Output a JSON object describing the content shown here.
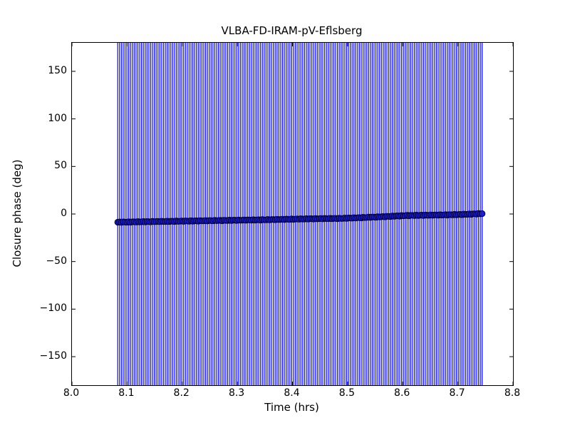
{
  "figure": {
    "kind": "matplotlib-style static plot image",
    "background_color": "#ffffff",
    "spine_color": "#000000"
  },
  "chart_data": {
    "type": "scatter",
    "title": "VLBA-FD-IRAM-pV-Eflsberg",
    "xlabel": "Time (hrs)",
    "ylabel": "Closure phase (deg)",
    "xlim": [
      8.0,
      8.8
    ],
    "ylim": [
      -180,
      180
    ],
    "grid": false,
    "legend": false,
    "xticks": {
      "values": [
        8.0,
        8.1,
        8.2,
        8.3,
        8.4,
        8.5,
        8.6,
        8.7,
        8.8
      ],
      "labels": [
        "8.0",
        "8.1",
        "8.2",
        "8.3",
        "8.4",
        "8.5",
        "8.6",
        "8.7",
        "8.8"
      ]
    },
    "yticks": {
      "values": [
        150,
        100,
        50,
        0,
        -50,
        -100,
        -150
      ],
      "labels": [
        "150",
        "100",
        "50",
        "0",
        "−50",
        "−100",
        "−150"
      ]
    },
    "tick_style": "inward ticks on all four spines",
    "series": [
      {
        "name": "closure-phase-vs-time",
        "marker": "circle",
        "marker_color": "#1c1cd0",
        "marker_edge_color": "#000030",
        "errorbar_color": "#1414f0",
        "n_points": 200,
        "t_start": 8.083,
        "t_end": 8.744,
        "wiggle_deg": 0.3,
        "errorbars_span_full_yrange": true,
        "errorbar_note": "vertical error bars on every point extend beyond the y-axis limits and are clipped at ±180",
        "trend_points": [
          [
            8.083,
            -8.6
          ],
          [
            8.13,
            -8.1
          ],
          [
            8.181,
            -7.7
          ],
          [
            8.259,
            -6.9
          ],
          [
            8.336,
            -6.2
          ],
          [
            8.427,
            -5.1
          ],
          [
            8.49,
            -4.6
          ],
          [
            8.55,
            -3.2
          ],
          [
            8.607,
            -1.6
          ],
          [
            8.65,
            -1.2
          ],
          [
            8.7,
            -0.6
          ],
          [
            8.744,
            0.4
          ]
        ]
      }
    ]
  }
}
